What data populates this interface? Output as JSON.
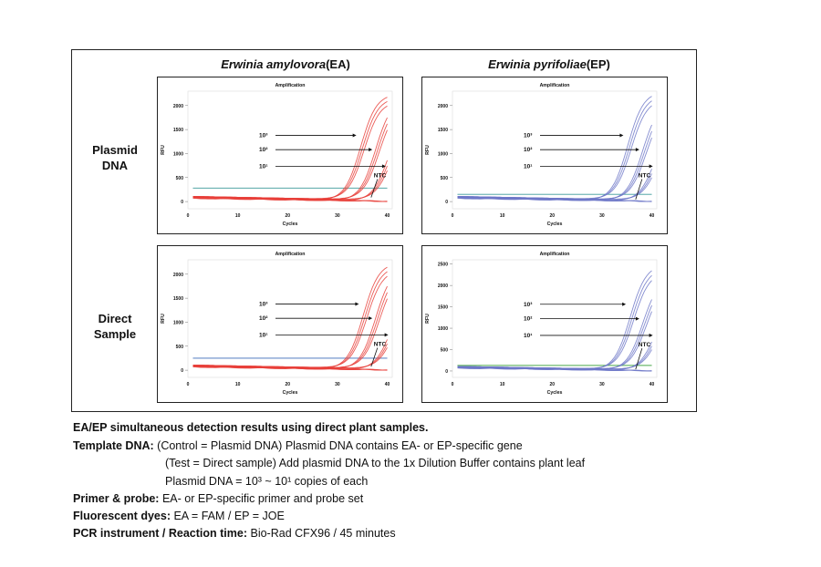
{
  "columns": [
    {
      "title_italic": "Erwinia amylovora",
      "title_suffix": "(EA)"
    },
    {
      "title_italic": "Erwinia pyrifoliae",
      "title_suffix": "(EP)"
    }
  ],
  "rows": [
    {
      "label_line1": "Plasmid",
      "label_line2": "DNA"
    },
    {
      "label_line1": "Direct",
      "label_line2": "Sample"
    }
  ],
  "caption": {
    "heading": "EA/EP simultaneous detection results using direct plant samples.",
    "template_label": "Template DNA:",
    "template_line1": "(Control = Plasmid DNA) Plasmid DNA contains EA- or EP-specific gene",
    "template_line2": "(Test = Direct sample) Add plasmid DNA to the 1x Dilution Buffer contains plant leaf",
    "template_line3": "Plasmid DNA = 10³ ~ 10¹ copies of each",
    "primer_label": "Primer & probe:",
    "primer_text": "EA- or EP-specific primer and probe set",
    "dyes_label": "Fluorescent dyes:",
    "dyes_text": "EA = FAM / EP = JOE",
    "pcr_label": "PCR instrument / Reaction time:",
    "pcr_text": "Bio-Rad CFX96 / 45 minutes"
  },
  "chart_data": [
    {
      "type": "line",
      "panel": "EA-plasmid",
      "title": "Amplification",
      "xlabel": "Cycles",
      "ylabel": "RFU",
      "xlim": [
        0,
        41
      ],
      "ylim": [
        -150,
        2300
      ],
      "xticks": [
        0,
        10,
        20,
        30,
        40
      ],
      "yticks": [
        0,
        500,
        1000,
        1500,
        2000
      ],
      "color": "#e8403a",
      "threshold": 280,
      "threshold_color": "#3a9a9a",
      "series": [
        {
          "label": "10³",
          "values_desc": "sigmoid",
          "ct": 33.5,
          "plateau": 2250
        },
        {
          "label": "10²",
          "ct": 36.5,
          "plateau": 2150
        },
        {
          "label": "10¹",
          "ct": 39.0,
          "plateau": 1800
        },
        {
          "label": "NTC",
          "ct": null,
          "plateau": 0
        }
      ],
      "annotations": [
        "10³",
        "10²",
        "10¹",
        "NTC"
      ]
    },
    {
      "type": "line",
      "panel": "EP-plasmid",
      "title": "Amplification",
      "xlabel": "Cycles",
      "ylabel": "RFU",
      "xlim": [
        0,
        41
      ],
      "ylim": [
        -150,
        2300
      ],
      "xticks": [
        0,
        10,
        20,
        30,
        40
      ],
      "yticks": [
        0,
        500,
        1000,
        1500,
        2000
      ],
      "color": "#6f78c8",
      "threshold": 150,
      "threshold_color": "#3a9a9a",
      "series": [
        {
          "label": "10³",
          "ct": 34.0,
          "plateau": 2300
        },
        {
          "label": "10²",
          "ct": 37.0,
          "plateau": 2100
        },
        {
          "label": "10¹",
          "ct": 39.5,
          "plateau": 1700
        },
        {
          "label": "NTC",
          "ct": null,
          "plateau": 0
        }
      ],
      "annotations": [
        "10³",
        "10²",
        "10¹",
        "NTC"
      ]
    },
    {
      "type": "line",
      "panel": "EA-direct",
      "title": "Amplification",
      "xlabel": "Cycles",
      "ylabel": "RFU",
      "xlim": [
        0,
        41
      ],
      "ylim": [
        -150,
        2300
      ],
      "xticks": [
        0,
        10,
        20,
        30,
        40
      ],
      "yticks": [
        0,
        500,
        1000,
        1500,
        2000
      ],
      "color": "#e8403a",
      "threshold": 250,
      "threshold_color": "#3a6ab8",
      "series": [
        {
          "label": "10³",
          "ct": 34.0,
          "plateau": 2250
        },
        {
          "label": "10²",
          "ct": 36.5,
          "plateau": 2150
        },
        {
          "label": "10¹",
          "ct": 39.5,
          "plateau": 1600
        },
        {
          "label": "NTC",
          "ct": null,
          "plateau": 0
        }
      ],
      "annotations": [
        "10³",
        "10²",
        "10¹",
        "NTC"
      ]
    },
    {
      "type": "line",
      "panel": "EP-direct",
      "title": "Amplification",
      "xlabel": "Cycles",
      "ylabel": "RFU",
      "xlim": [
        0,
        41
      ],
      "ylim": [
        -150,
        2600
      ],
      "xticks": [
        0,
        10,
        20,
        30,
        40
      ],
      "yticks": [
        0,
        500,
        1000,
        1500,
        2000,
        2500
      ],
      "color": "#6f78c8",
      "threshold": 130,
      "threshold_color": "#4aa84a",
      "series": [
        {
          "label": "10³",
          "ct": 34.5,
          "plateau": 2500
        },
        {
          "label": "10²",
          "ct": 37.0,
          "plateau": 2200
        },
        {
          "label": "10¹",
          "ct": 39.5,
          "plateau": 1700
        },
        {
          "label": "NTC",
          "ct": null,
          "plateau": 0
        }
      ],
      "annotations": [
        "10³",
        "10²",
        "10¹",
        "NTC"
      ]
    }
  ]
}
